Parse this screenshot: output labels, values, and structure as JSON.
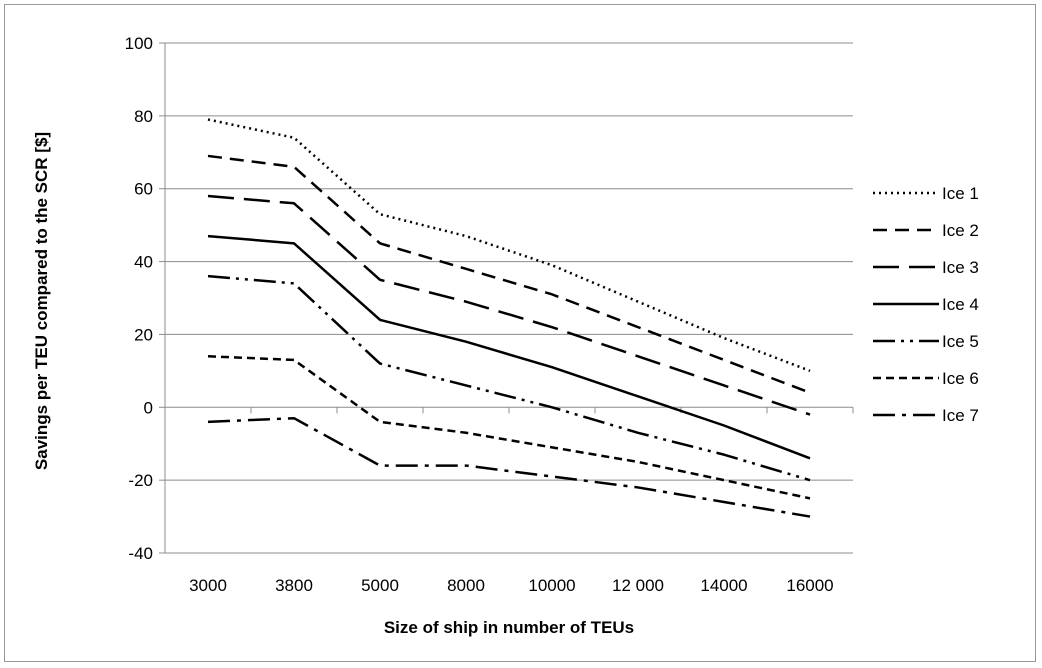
{
  "chart_data": {
    "type": "line",
    "title": "",
    "xlabel": "Size of ship in number of TEUs",
    "ylabel": "Savings per TEU compared to the SCR [$]",
    "categories": [
      "3000",
      "3800",
      "5000",
      "8000",
      "10000",
      "12 000",
      "14000",
      "16000"
    ],
    "ylim": [
      -40,
      100
    ],
    "yticks": [
      -40,
      -20,
      0,
      20,
      40,
      60,
      80,
      100
    ],
    "grid": "horizontal",
    "legend": "right",
    "series": [
      {
        "name": "Ice 1",
        "values": [
          79,
          74,
          53,
          47,
          39,
          29,
          19,
          10
        ],
        "dash": "2,4"
      },
      {
        "name": "Ice 2",
        "values": [
          69,
          66,
          45,
          38,
          31,
          22,
          13,
          4
        ],
        "dash": "14,8"
      },
      {
        "name": "Ice 3",
        "values": [
          58,
          56,
          35,
          29,
          22,
          14,
          6,
          -2
        ],
        "dash": "26,10"
      },
      {
        "name": "Ice 4",
        "values": [
          47,
          45,
          24,
          18,
          11,
          3,
          -5,
          -14
        ],
        "dash": ""
      },
      {
        "name": "Ice 5",
        "values": [
          36,
          34,
          12,
          6,
          0,
          -7,
          -13,
          -20
        ],
        "dash": "22,6,3,6,3,6"
      },
      {
        "name": "Ice 6",
        "values": [
          14,
          13,
          -4,
          -7,
          -11,
          -15,
          -20,
          -25
        ],
        "dash": "8,5"
      },
      {
        "name": "Ice 7",
        "values": [
          -4,
          -3,
          -16,
          -16,
          -19,
          -22,
          -26,
          -30
        ],
        "dash": "22,7,4,7"
      }
    ]
  }
}
